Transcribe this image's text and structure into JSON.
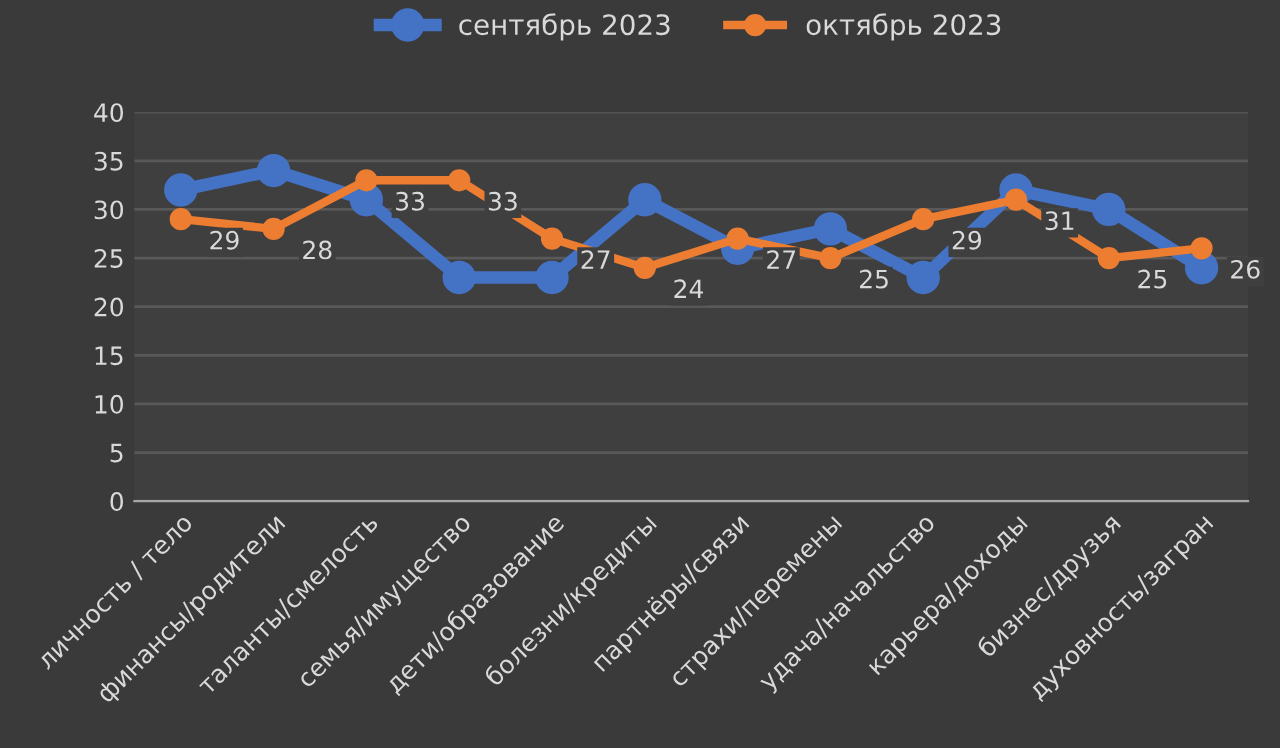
{
  "chart_data": {
    "type": "line",
    "categories": [
      "личность / тело",
      "финансы/родители",
      "таланты/смелость",
      "семья/имущество",
      "дети/образование",
      "болезни/кредиты",
      "партнёры/связи",
      "страхи/перемены",
      "удача/начальство",
      "карьера/доходы",
      "бизнес/друзья",
      "духовность/загран"
    ],
    "series": [
      {
        "name": "сентябрь 2023",
        "color": "#4472c4",
        "values": [
          32,
          34,
          31,
          23,
          23,
          31,
          26,
          28,
          23,
          32,
          30,
          24
        ]
      },
      {
        "name": "октябрь 2023",
        "color": "#ed7d31",
        "values": [
          29,
          28,
          33,
          33,
          27,
          24,
          27,
          25,
          29,
          31,
          25,
          26
        ],
        "value_labels": [
          "29",
          "28",
          "33",
          "33",
          "27",
          "24",
          "27",
          "25",
          "29",
          "31",
          "25",
          "26"
        ]
      }
    ],
    "ylim": [
      0,
      40
    ],
    "yticks": [
      0,
      5,
      10,
      15,
      20,
      25,
      30,
      35,
      40
    ],
    "grid": "y",
    "legend": "top",
    "marker": "circle",
    "line_style": "solid"
  }
}
